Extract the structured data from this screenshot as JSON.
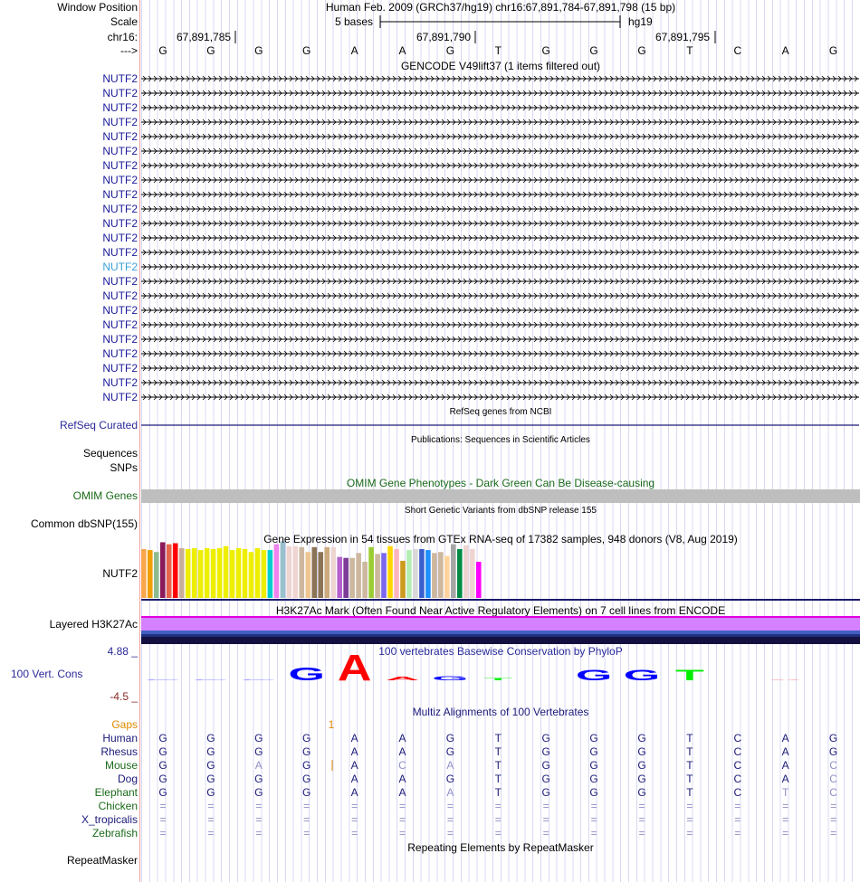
{
  "ruler": {
    "labels": [
      "Window Position",
      "Scale",
      "chr16:",
      "--->"
    ],
    "title": "Human Feb. 2009 (GRCh37/hg19)   chr16:67,891,784-67,891,798 (15 bp)",
    "scale_label": "5 bases",
    "assembly": "hg19",
    "ticks": [
      "67,891,785",
      "67,891,790",
      "67,891,795"
    ],
    "bases": [
      "G",
      "G",
      "G",
      "G",
      "A",
      "A",
      "G",
      "T",
      "G",
      "G",
      "G",
      "T",
      "C",
      "A",
      "G"
    ]
  },
  "gencode": {
    "title": "GENCODE V49lift37 (1 items filtered out)",
    "gene": "NUTF2",
    "row_count": 23,
    "highlighted_row": 13
  },
  "refseq": {
    "title": "RefSeq genes from NCBI",
    "label": "RefSeq Curated"
  },
  "publications": {
    "title": "Publications: Sequences in Scientific Articles",
    "labels": [
      "Sequences",
      "SNPs"
    ]
  },
  "omim": {
    "title": "OMIM Gene Phenotypes - Dark Green Can Be Disease-causing",
    "label": "OMIM Genes"
  },
  "dbsnp": {
    "title": "Short Genetic Variants from dbSNP release 155",
    "label": "Common dbSNP(155)"
  },
  "gtex": {
    "title": "Gene Expression in 54 tissues from GTEx RNA-seq of 17382 samples, 948 donors (V8, Aug 2019)",
    "label": "NUTF2",
    "values": [
      50,
      49,
      47,
      57,
      55,
      56,
      51,
      50,
      51,
      49,
      51,
      50,
      51,
      53,
      49,
      51,
      50,
      47,
      51,
      49,
      49,
      55,
      58,
      53,
      53,
      52,
      47,
      52,
      47,
      52,
      52,
      42,
      41,
      41,
      46,
      37,
      52,
      45,
      46,
      53,
      50,
      38,
      49,
      50,
      50,
      49,
      46,
      47,
      43,
      55,
      50,
      54,
      50,
      37
    ],
    "colors": [
      "#f9a64b",
      "#f0a000",
      "#8fbc8f",
      "#8b1a5a",
      "#e8644a",
      "#ff0000",
      "#c8ad98",
      "#eeee00",
      "#eeee00",
      "#eeee00",
      "#eeee00",
      "#eeee00",
      "#eeee00",
      "#eeee00",
      "#eeee00",
      "#eeee00",
      "#eeee00",
      "#eeee00",
      "#eeee00",
      "#eeee00",
      "#00cdcd",
      "#ee82ee",
      "#9ac0cd",
      "#eed5d2",
      "#eed5d2",
      "#cdb79e",
      "#eec591",
      "#8b7355",
      "#8b7355",
      "#cdaa7d",
      "#eed5d2",
      "#b460cd",
      "#7d3c98",
      "#cdb79e",
      "#cdb79e",
      "#cdb79e",
      "#9acd32",
      "#cdb79e",
      "#7b68ee",
      "#ffd700",
      "#ffb6c1",
      "#cd9b1d",
      "#b4eeb4",
      "#d9d9d9",
      "#3a5fcd",
      "#1e90ff",
      "#cdb79e",
      "#cdb79e",
      "#ffd39b",
      "#a6a6a6",
      "#008b45",
      "#eed5d2",
      "#eed5d2",
      "#ff00ff"
    ]
  },
  "h3k27ac": {
    "title": "H3K27Ac Mark (Often Found Near Active Regulatory Elements) on 7 cell lines from ENCODE",
    "label": "Layered H3K27Ac"
  },
  "phylop": {
    "title": "100 vertebrates Basewise Conservation by PhyloP",
    "label": "100 Vert. Cons",
    "max": "4.88 _",
    "min": "-4.5 _",
    "scores": [
      0.1,
      0.1,
      0.1,
      1.6,
      3.2,
      0.4,
      0.5,
      0.3,
      0,
      1.3,
      1.3,
      1.3,
      0,
      0.1,
      0
    ]
  },
  "multiz": {
    "title": "Multiz Alignments of 100 Vertebrates",
    "gaps_label": "Gaps",
    "gap_mark": "1",
    "species": [
      {
        "name": "Human",
        "color": "#1a1a7a",
        "seq": "GGGGAAGTGGGTCAG"
      },
      {
        "name": "Rhesus",
        "color": "#1a1a7a",
        "seq": "GGGGAAGTGGGTCAG"
      },
      {
        "name": "Mouse",
        "color": "#1a6a1a",
        "seq": "GGAGACATGGGTCAC"
      },
      {
        "name": "Dog",
        "color": "#1a1a7a",
        "seq": "GGGGAAGTGGGTCAC"
      },
      {
        "name": "Elephant",
        "color": "#1a6a1a",
        "seq": "GGGGAAATGGGTCTC"
      },
      {
        "name": "Chicken",
        "color": "#1a6a1a",
        "seq": "==============="
      },
      {
        "name": "X_tropicalis",
        "color": "#1a1a7a",
        "seq": "==============="
      },
      {
        "name": "Zebrafish",
        "color": "#1a6a1a",
        "seq": "==============="
      }
    ]
  },
  "repeatmasker": {
    "title": "Repeating Elements by RepeatMasker",
    "label": "RepeatMasker"
  }
}
